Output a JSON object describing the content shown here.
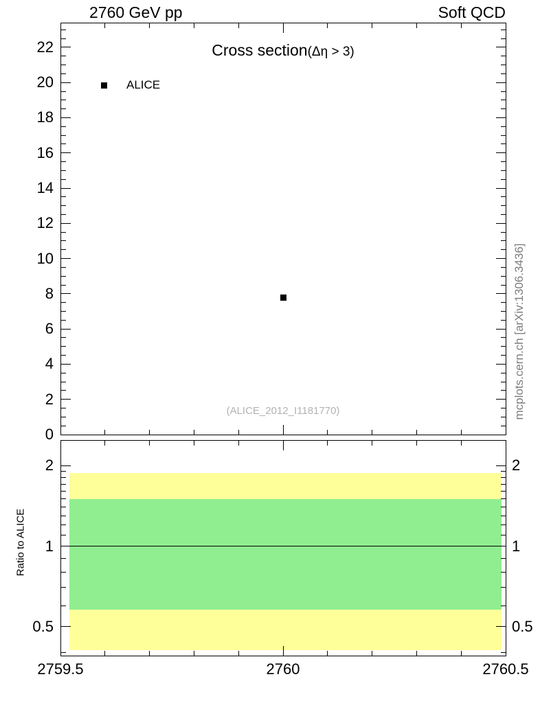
{
  "header": {
    "left": "2760 GeV pp",
    "right": "Soft QCD"
  },
  "watermark": "(ALICE_2012_I1181770)",
  "side_label": "mcplots.cern.ch [arXiv:1306.3436]",
  "colors": {
    "axis": "#000000",
    "marker": "#000000",
    "watermark": "#b2b2b2",
    "band_outer": "#ffff99",
    "band_inner": "#90ee90"
  },
  "chart_data": [
    {
      "type": "scatter",
      "panel": "main",
      "title": "Cross section",
      "title_suffix": "(Δη > 3)",
      "xlabel": "",
      "ylabel": "",
      "grid": false,
      "legend_position": "top-left",
      "xlim": [
        2759.5,
        2760.5
      ],
      "ylim": [
        0,
        23.4
      ],
      "xticks": [
        2759.5,
        2760,
        2760.5
      ],
      "xtick_labels": [
        "2759.5",
        "2760",
        "2760.5"
      ],
      "x_minor_step": 0.1,
      "yticks": [
        0,
        2,
        4,
        6,
        8,
        10,
        12,
        14,
        16,
        18,
        20,
        22
      ],
      "y_minor_step": 0.5,
      "series": [
        {
          "name": "ALICE",
          "marker": "filled-square",
          "color": "#000000",
          "x": [
            2760
          ],
          "y": [
            7.8
          ]
        }
      ]
    },
    {
      "type": "ratio-band",
      "panel": "ratio",
      "ylabel": "Ratio to ALICE",
      "yscale": "log",
      "xlim": [
        2759.5,
        2760.5
      ],
      "ylim": [
        0.39,
        2.49
      ],
      "yticks": [
        0.5,
        1,
        2
      ],
      "ytick_labels": [
        "0.5",
        "1",
        "2"
      ],
      "y_minor_ticks": [
        0.4,
        0.6,
        0.7,
        0.8,
        0.9,
        1.1,
        1.2,
        1.3,
        1.4,
        1.5,
        1.6,
        1.7,
        1.8,
        1.9
      ],
      "reference_line": 1,
      "band_x": [
        2759.52,
        2760.49
      ],
      "bands": [
        {
          "name": "outer",
          "color": "#ffff99",
          "lo": 0.41,
          "hi": 1.87
        },
        {
          "name": "inner",
          "color": "#90ee90",
          "lo": 0.58,
          "hi": 1.5
        }
      ]
    }
  ]
}
